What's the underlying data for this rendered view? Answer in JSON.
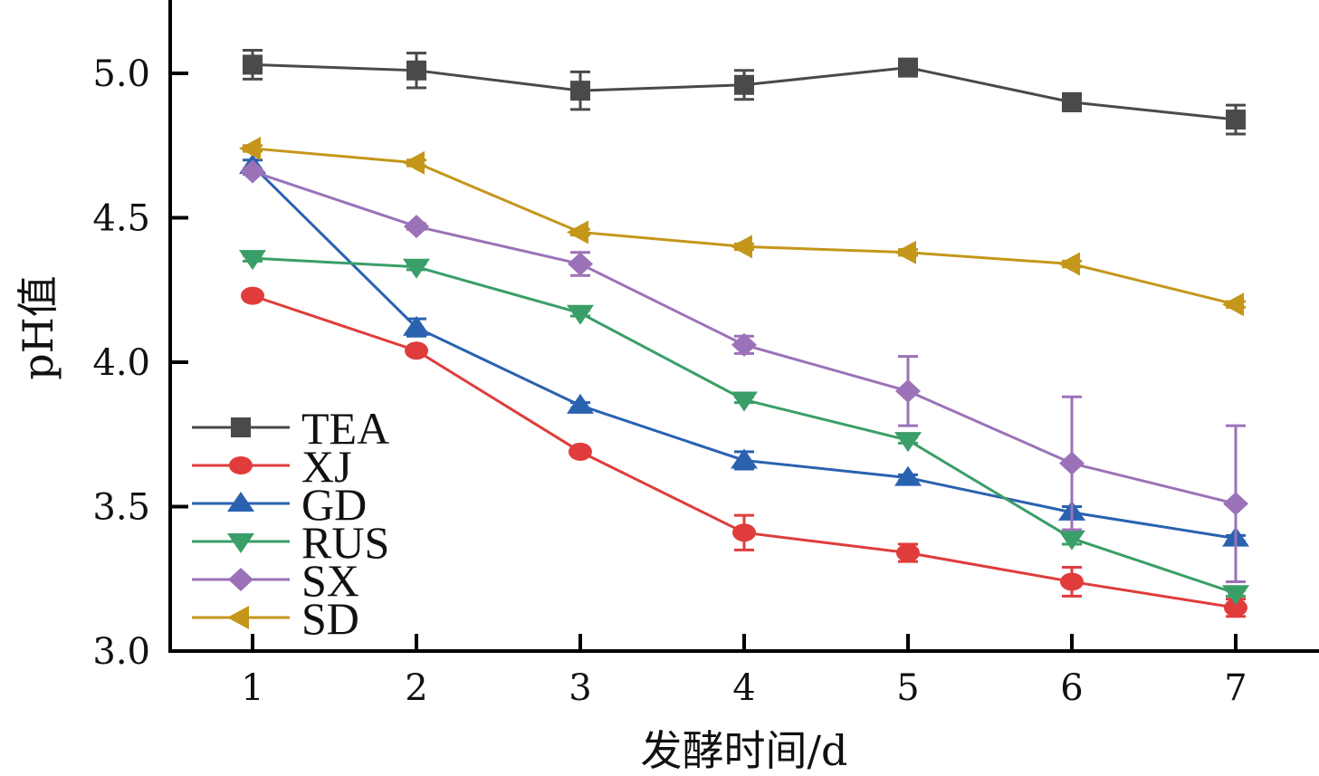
{
  "chart_data": {
    "type": "line",
    "title": "",
    "xlabel": "发酵时间/d",
    "ylabel": "pH值",
    "x": [
      1,
      2,
      3,
      4,
      5,
      6,
      7
    ],
    "xticks": [
      "1",
      "2",
      "3",
      "4",
      "5",
      "6",
      "7"
    ],
    "yticks": [
      "3.0",
      "3.5",
      "4.0",
      "4.5",
      "5.0"
    ],
    "ytick_values": [
      3.0,
      3.5,
      4.0,
      4.5,
      5.0
    ],
    "xlim": [
      0.5,
      7.5
    ],
    "ylim": [
      3.0,
      5.25
    ],
    "grid": false,
    "legend_position": "lower-left",
    "series": [
      {
        "name": "TEA",
        "color": "#4a4a4a",
        "marker": "square",
        "values": [
          5.03,
          5.01,
          4.94,
          4.96,
          5.02,
          4.9,
          4.84
        ],
        "errors": [
          0.05,
          0.06,
          0.065,
          0.05,
          0.01,
          0.03,
          0.05
        ]
      },
      {
        "name": "XJ",
        "color": "#e03c3c",
        "marker": "circle",
        "values": [
          4.23,
          4.04,
          3.69,
          3.41,
          3.34,
          3.24,
          3.15
        ],
        "errors": [
          0.01,
          0.01,
          0.01,
          0.06,
          0.03,
          0.05,
          0.03
        ]
      },
      {
        "name": "GD",
        "color": "#2a62b0",
        "marker": "triangle-up",
        "values": [
          4.68,
          4.12,
          3.85,
          3.66,
          3.6,
          3.48,
          3.39
        ],
        "errors": [
          0.02,
          0.03,
          0.01,
          0.03,
          0.01,
          0.02,
          0.01
        ]
      },
      {
        "name": "RUS",
        "color": "#3a9e68",
        "marker": "triangle-down",
        "values": [
          4.36,
          4.33,
          4.17,
          3.87,
          3.73,
          3.39,
          3.2
        ],
        "errors": [
          0.01,
          0.01,
          0.01,
          0.01,
          0.01,
          0.02,
          0.01
        ]
      },
      {
        "name": "SX",
        "color": "#9b72b8",
        "marker": "diamond",
        "values": [
          4.66,
          4.47,
          4.34,
          4.06,
          3.9,
          3.65,
          3.51
        ],
        "errors": [
          0.01,
          0.01,
          0.04,
          0.03,
          0.12,
          0.23,
          0.27
        ]
      },
      {
        "name": "SD",
        "color": "#c4961a",
        "marker": "triangle-left",
        "values": [
          4.74,
          4.69,
          4.45,
          4.4,
          4.38,
          4.34,
          4.2
        ],
        "errors": [
          0.01,
          0.01,
          0.01,
          0.01,
          0.01,
          0.01,
          0.01
        ]
      }
    ]
  }
}
